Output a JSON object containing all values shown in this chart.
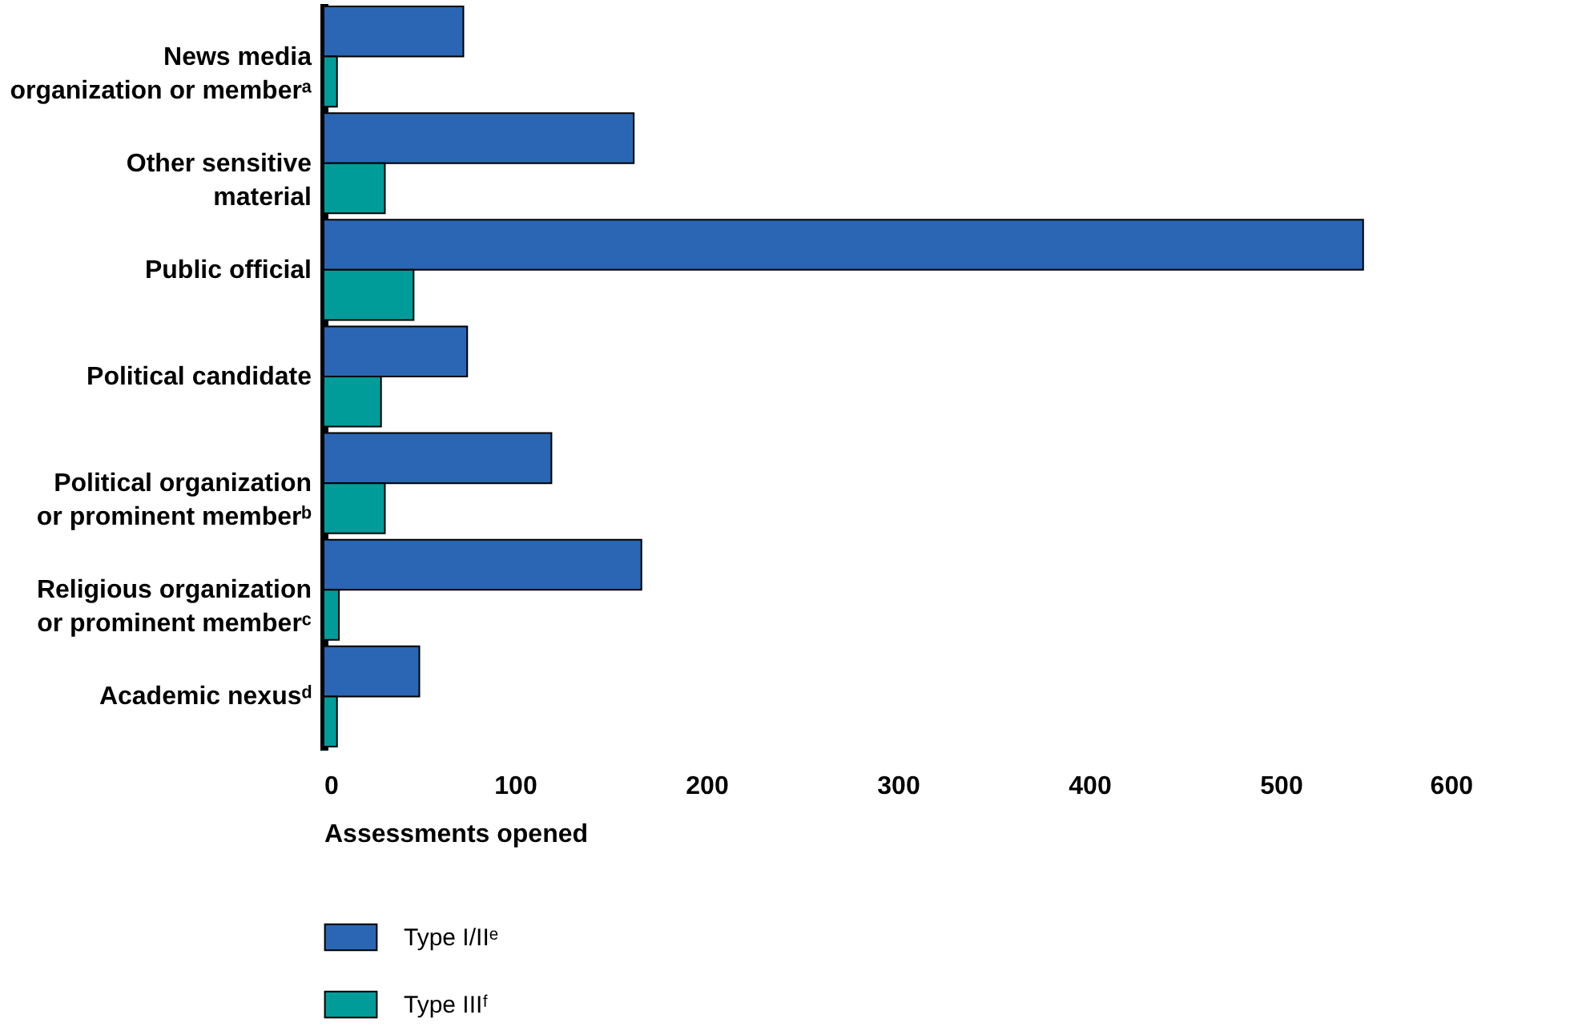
{
  "chart_data": {
    "type": "bar",
    "orientation": "horizontal",
    "categories": [
      "News media\norganization or memberᵃ",
      "Other sensitive\nmaterial",
      "Public official",
      "Political candidate",
      "Political organization\nor prominent memberᵇ",
      "Religious organization\nor prominent memberᶜ",
      "Academic nexusᵈ"
    ],
    "series": [
      {
        "name": "Type I/IIᵉ",
        "color": "#2a66b3",
        "values": [
          73,
          162,
          543,
          75,
          119,
          166,
          50
        ]
      },
      {
        "name": "Type IIIᶠ",
        "color": "#009c9a",
        "values": [
          7,
          32,
          47,
          30,
          32,
          8,
          7
        ]
      }
    ],
    "xlim": [
      0,
      600
    ],
    "xticks": [
      0,
      100,
      200,
      300,
      400,
      500,
      600
    ],
    "xlabel": "Assessments opened",
    "legend": "bottom"
  }
}
